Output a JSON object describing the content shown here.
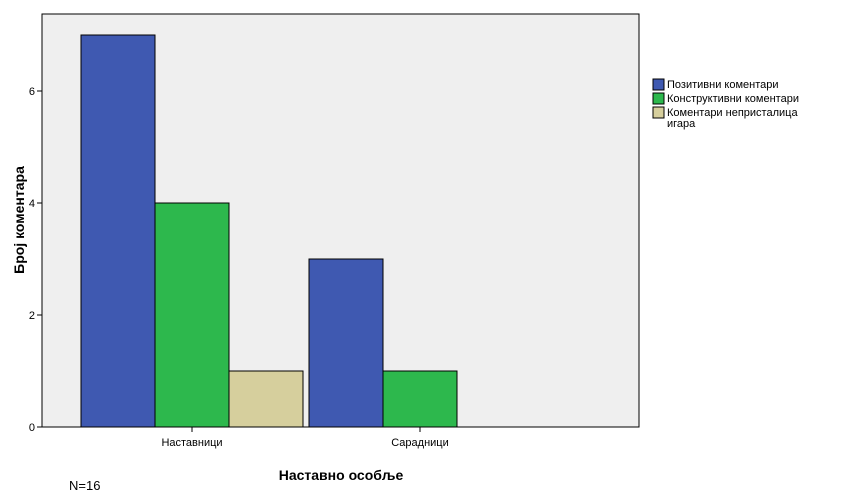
{
  "chart_data": {
    "type": "bar",
    "categories": [
      "Наставници",
      "Сарадници"
    ],
    "series": [
      {
        "name": "Позитивни коментари",
        "color": "#3f59b1",
        "values": [
          7,
          3
        ]
      },
      {
        "name": "Конструктивни коментари",
        "color": "#2db84d",
        "values": [
          4,
          1
        ]
      },
      {
        "name": "Коментари непристалица игара",
        "color": "#d6cf9d",
        "values": [
          1,
          null
        ]
      }
    ],
    "xlabel": "Наставно особље",
    "ylabel": "Број коментара",
    "ylim": [
      0,
      7.0
    ],
    "yticks": [
      0,
      2,
      4,
      6
    ],
    "legend_position": "right",
    "grid": false,
    "plot_background": "#efefef",
    "note": "N=16"
  }
}
